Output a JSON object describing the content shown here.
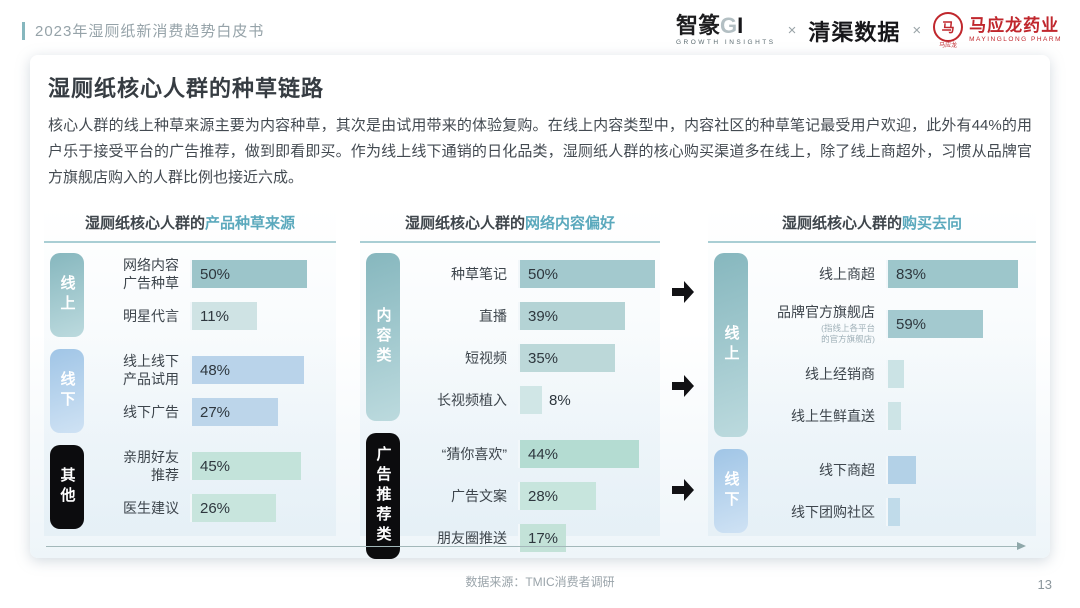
{
  "header": {
    "doc_title": "2023年湿厕纸新消费趋势白皮书",
    "logos": {
      "zhizhuan": "智篆",
      "zhizhuan_g": "G",
      "zhizhuan_i": "I",
      "zhizhuan_tagline": "GROWTH INSIGHTS",
      "cross1": "×",
      "qingqu": "清渠数据",
      "cross2": "×",
      "emblem_char": "马",
      "emblem_caption": "马应龙",
      "mayinglong_name": "马应龙药业",
      "mayinglong_tagline": "MAYINGLONG PHARM"
    }
  },
  "slide": {
    "title": "湿厕纸核心人群的种草链路",
    "body": "核心人群的线上种草来源主要为内容种草，其次是由试用带来的体验复购。在线上内容类型中，内容社区的种草笔记最受用户欢迎，此外有44%的用户乐于接受平台的广告推荐，做到即看即买。作为线上线下通销的日化品类，湿厕纸人群的核心购买渠道多在线上，除了线上商超外，习惯从品牌官方旗舰店购入的人群比例也接近六成。"
  },
  "chart_data": [
    {
      "type": "bar",
      "orientation": "horizontal",
      "unit": "%",
      "title_prefix": "湿厕纸核心人群的",
      "title_highlight": "产品种草来源",
      "groups": [
        {
          "category": "线上",
          "rows": [
            {
              "label": "网络内容\n广告种草",
              "value": 50,
              "value_label": "50%",
              "color": "#9cc5ca"
            },
            {
              "label": "明星代言",
              "value": 11,
              "value_label": "11%",
              "color": "#cfe3e4"
            }
          ]
        },
        {
          "category": "线下",
          "rows": [
            {
              "label": "线上线下\n产品试用",
              "value": 48,
              "value_label": "48%",
              "color": "#b9d3ea"
            },
            {
              "label": "线下广告",
              "value": 27,
              "value_label": "27%",
              "color": "#bcd5ea"
            }
          ]
        },
        {
          "category": "其他",
          "rows": [
            {
              "label": "亲朋好友\n推荐",
              "value": 45,
              "value_label": "45%",
              "color": "#c3e3da"
            },
            {
              "label": "医生建议",
              "value": 26,
              "value_label": "26%",
              "color": "#c8e5dd"
            }
          ]
        }
      ]
    },
    {
      "type": "bar",
      "orientation": "horizontal",
      "unit": "%",
      "title_prefix": "湿厕纸核心人群的",
      "title_highlight": "网络内容偏好",
      "groups": [
        {
          "category": "内容类",
          "rows": [
            {
              "label": "种草笔记",
              "value": 50,
              "value_label": "50%",
              "color": "#a3c9ce"
            },
            {
              "label": "直播",
              "value": 39,
              "value_label": "39%",
              "color": "#b4d3d5"
            },
            {
              "label": "短视频",
              "value": 35,
              "value_label": "35%",
              "color": "#bcd8d9"
            },
            {
              "label": "长视频植入",
              "value": 8,
              "value_label": "8%",
              "color": "#d0e6e6"
            }
          ]
        },
        {
          "category": "广告推荐类",
          "rows": [
            {
              "label": "“猜你喜欢”",
              "value": 44,
              "value_label": "44%",
              "color": "#b4dcd2"
            },
            {
              "label": "广告文案",
              "value": 28,
              "value_label": "28%",
              "color": "#c7e5dd"
            },
            {
              "label": "朋友圈推送",
              "value": 17,
              "value_label": "17%",
              "color": "#c3e2d8"
            }
          ]
        }
      ]
    },
    {
      "type": "bar",
      "orientation": "horizontal",
      "unit": "%",
      "title_prefix": "湿厕纸核心人群的",
      "title_highlight": "购买去向",
      "groups": [
        {
          "category": "线上",
          "rows": [
            {
              "label": "线上商超",
              "value": 83,
              "value_label": "83%",
              "color": "#9dc6cb"
            },
            {
              "label": "品牌官方旗舰店",
              "note": "(指线上各平台\n的官方旗舰店)",
              "value": 59,
              "value_label": "59%",
              "color": "#a3c9cf"
            },
            {
              "label": "线上经销商",
              "value": 5,
              "value_label": "",
              "color": "#cbe3e5"
            },
            {
              "label": "线上生鲜直送",
              "value": 3,
              "value_label": "",
              "color": "#cde4e6"
            }
          ]
        },
        {
          "category": "线下",
          "rows": [
            {
              "label": "线下商超",
              "value": 13,
              "value_label": "",
              "color": "#b3d1e7"
            },
            {
              "label": "线下团购社区",
              "value": 2,
              "value_label": "",
              "color": "#c0dbea"
            }
          ]
        }
      ]
    }
  ],
  "footer": {
    "source": "数据来源：TMIC消费者调研",
    "page": "13"
  }
}
